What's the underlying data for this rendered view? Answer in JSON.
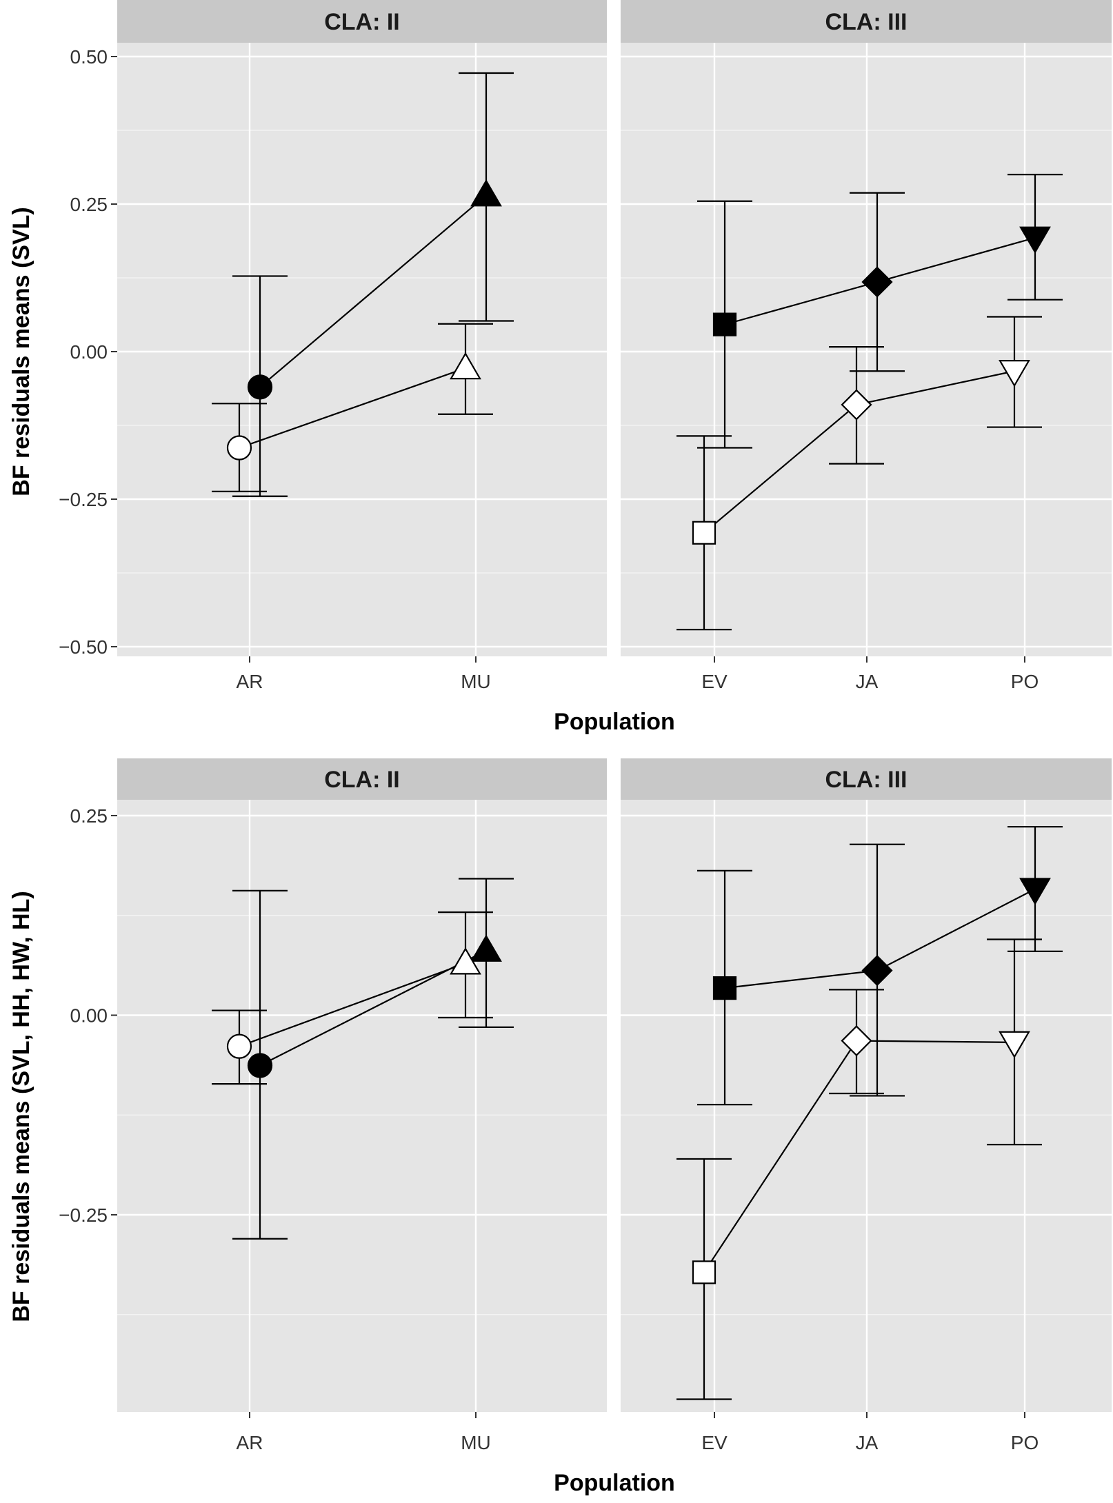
{
  "chart_data": [
    {
      "type": "line",
      "xlabel": "Population",
      "ylabel": "BF residuals means (SVL)",
      "ylim": [
        -0.5,
        0.5
      ],
      "y_ticks": [
        0.5,
        0.25,
        0.0,
        -0.25,
        -0.5
      ],
      "y_tick_labels": [
        "0.50",
        "0.25",
        "0.00",
        "−0.25",
        "−0.50"
      ],
      "facets": [
        {
          "strip": "CLA: II",
          "categories": [
            "AR",
            "MU"
          ],
          "series": [
            {
              "fill": "black",
              "points": [
                {
                  "x": "AR",
                  "y": -0.06,
                  "lo": -0.245,
                  "hi": 0.128,
                  "shape": "circle"
                },
                {
                  "x": "MU",
                  "y": 0.265,
                  "lo": 0.052,
                  "hi": 0.472,
                  "shape": "triangle-up"
                }
              ]
            },
            {
              "fill": "white",
              "points": [
                {
                  "x": "AR",
                  "y": -0.163,
                  "lo": -0.237,
                  "hi": -0.088,
                  "shape": "circle"
                },
                {
                  "x": "MU",
                  "y": -0.028,
                  "lo": -0.106,
                  "hi": 0.047,
                  "shape": "triangle-up"
                }
              ]
            }
          ]
        },
        {
          "strip": "CLA: III",
          "categories": [
            "EV",
            "JA",
            "PO"
          ],
          "series": [
            {
              "fill": "black",
              "points": [
                {
                  "x": "EV",
                  "y": 0.046,
                  "lo": -0.163,
                  "hi": 0.255,
                  "shape": "square"
                },
                {
                  "x": "JA",
                  "y": 0.118,
                  "lo": -0.033,
                  "hi": 0.269,
                  "shape": "diamond"
                },
                {
                  "x": "PO",
                  "y": 0.193,
                  "lo": 0.088,
                  "hi": 0.3,
                  "shape": "triangle-down"
                }
              ]
            },
            {
              "fill": "white",
              "points": [
                {
                  "x": "EV",
                  "y": -0.307,
                  "lo": -0.471,
                  "hi": -0.143,
                  "shape": "square"
                },
                {
                  "x": "JA",
                  "y": -0.09,
                  "lo": -0.19,
                  "hi": 0.008,
                  "shape": "diamond"
                },
                {
                  "x": "PO",
                  "y": -0.033,
                  "lo": -0.128,
                  "hi": 0.059,
                  "shape": "triangle-down"
                }
              ]
            }
          ]
        }
      ]
    },
    {
      "type": "line",
      "xlabel": "Population",
      "ylabel": "BF residuals means (SVL, HH, HW, HL)",
      "ylim": [
        -0.5,
        0.25
      ],
      "y_ticks": [
        0.25,
        0.0,
        -0.25
      ],
      "y_tick_labels": [
        "0.25",
        "0.00",
        "−0.25"
      ],
      "facets": [
        {
          "strip": "CLA: II",
          "categories": [
            "AR",
            "MU"
          ],
          "series": [
            {
              "fill": "black",
              "points": [
                {
                  "x": "AR",
                  "y": -0.063,
                  "lo": -0.28,
                  "hi": 0.156,
                  "shape": "circle"
                },
                {
                  "x": "MU",
                  "y": 0.081,
                  "lo": -0.015,
                  "hi": 0.171,
                  "shape": "triangle-up"
                }
              ]
            },
            {
              "fill": "white",
              "points": [
                {
                  "x": "AR",
                  "y": -0.039,
                  "lo": -0.086,
                  "hi": 0.006,
                  "shape": "circle"
                },
                {
                  "x": "MU",
                  "y": 0.065,
                  "lo": -0.003,
                  "hi": 0.129,
                  "shape": "triangle-up"
                }
              ]
            }
          ]
        },
        {
          "strip": "CLA: III",
          "categories": [
            "EV",
            "JA",
            "PO"
          ],
          "series": [
            {
              "fill": "black",
              "points": [
                {
                  "x": "EV",
                  "y": 0.034,
                  "lo": -0.112,
                  "hi": 0.181,
                  "shape": "square"
                },
                {
                  "x": "JA",
                  "y": 0.056,
                  "lo": -0.101,
                  "hi": 0.214,
                  "shape": "diamond"
                },
                {
                  "x": "PO",
                  "y": 0.158,
                  "lo": 0.08,
                  "hi": 0.236,
                  "shape": "triangle-down"
                }
              ]
            },
            {
              "fill": "white",
              "points": [
                {
                  "x": "EV",
                  "y": -0.322,
                  "lo": -0.481,
                  "hi": -0.18,
                  "shape": "square"
                },
                {
                  "x": "JA",
                  "y": -0.032,
                  "lo": -0.098,
                  "hi": 0.032,
                  "shape": "diamond"
                },
                {
                  "x": "PO",
                  "y": -0.034,
                  "lo": -0.162,
                  "hi": 0.095,
                  "shape": "triangle-down"
                }
              ]
            }
          ]
        }
      ]
    }
  ]
}
